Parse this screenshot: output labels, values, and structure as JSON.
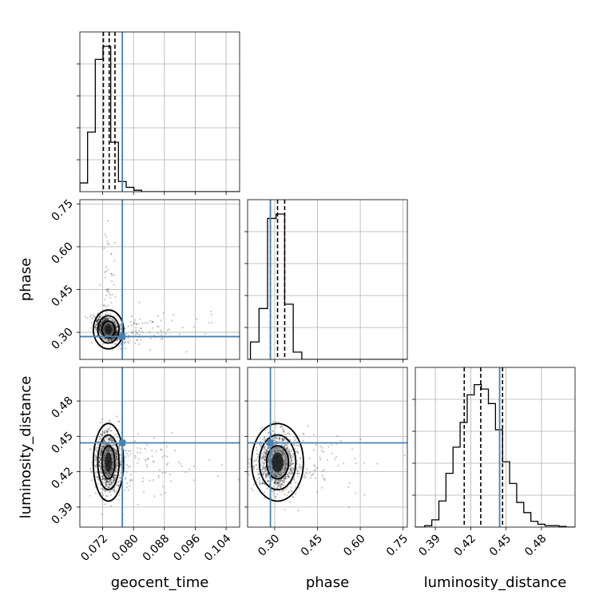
{
  "chart_data": {
    "type": "corner",
    "parameters": [
      "geocent_time",
      "phase",
      "luminosity_distance"
    ],
    "axis_labels": {
      "geocent_time": "geocent_time",
      "phase": "phase",
      "luminosity_distance": "luminosity_distance"
    },
    "ranges": {
      "geocent_time": [
        0.0661,
        0.1075
      ],
      "phase": [
        0.205,
        0.765
      ],
      "luminosity_distance": [
        0.373,
        0.5085
      ]
    },
    "ticks": {
      "geocent_time": {
        "values": [
          0.072,
          0.08,
          0.088,
          0.096,
          0.104
        ],
        "labels": [
          "0.072",
          "0.080",
          "0.088",
          "0.096",
          "0.104"
        ]
      },
      "phase": {
        "values": [
          0.3,
          0.45,
          0.6,
          0.75
        ],
        "labels": [
          "0.30",
          "0.45",
          "0.60",
          "0.75"
        ]
      },
      "luminosity_distance": {
        "values": [
          0.39,
          0.42,
          0.45,
          0.48
        ],
        "labels": [
          "0.39",
          "0.42",
          "0.45",
          "0.48"
        ]
      }
    },
    "truths": {
      "geocent_time": 0.0771,
      "phase": 0.285,
      "luminosity_distance": 0.4445
    },
    "quantiles": {
      "geocent_time": [
        0.0722,
        0.0737,
        0.0752
      ],
      "phase": [
        0.285,
        0.31,
        0.335
      ],
      "luminosity_distance": [
        0.4145,
        0.4285,
        0.447
      ]
    },
    "histograms": {
      "geocent_time": {
        "edges": [
          0.0661,
          0.0681,
          0.0701,
          0.0721,
          0.0741,
          0.0761,
          0.0781,
          0.0801,
          0.0821,
          0.0841
        ],
        "counts": [
          0.06,
          0.41,
          0.91,
          1.0,
          0.34,
          0.07,
          0.03,
          0.01,
          0.0
        ]
      },
      "phase": {
        "edges": [
          0.215,
          0.245,
          0.275,
          0.305,
          0.335,
          0.365,
          0.395
        ],
        "counts": [
          0.12,
          0.35,
          0.97,
          1.0,
          0.38,
          0.05
        ]
      },
      "luminosity_distance": {
        "edges": [
          0.381,
          0.387,
          0.393,
          0.399,
          0.405,
          0.411,
          0.417,
          0.423,
          0.429,
          0.435,
          0.441,
          0.447,
          0.453,
          0.459,
          0.465,
          0.471,
          0.477,
          0.483,
          0.489,
          0.495,
          0.501
        ],
        "counts": [
          0.01,
          0.05,
          0.18,
          0.37,
          0.55,
          0.72,
          0.91,
          0.98,
          0.95,
          0.85,
          0.67,
          0.45,
          0.3,
          0.17,
          0.1,
          0.04,
          0.02,
          0.01,
          0.01,
          0.005
        ]
      }
    },
    "posterior_centers": {
      "geocent_time": 0.0735,
      "phase": 0.31,
      "luminosity_distance": 0.428
    },
    "grid": true,
    "colors": {
      "truth": "#4682b4",
      "hist": "#000000",
      "samples": "#000000",
      "grid": "#b0b0b0"
    }
  }
}
